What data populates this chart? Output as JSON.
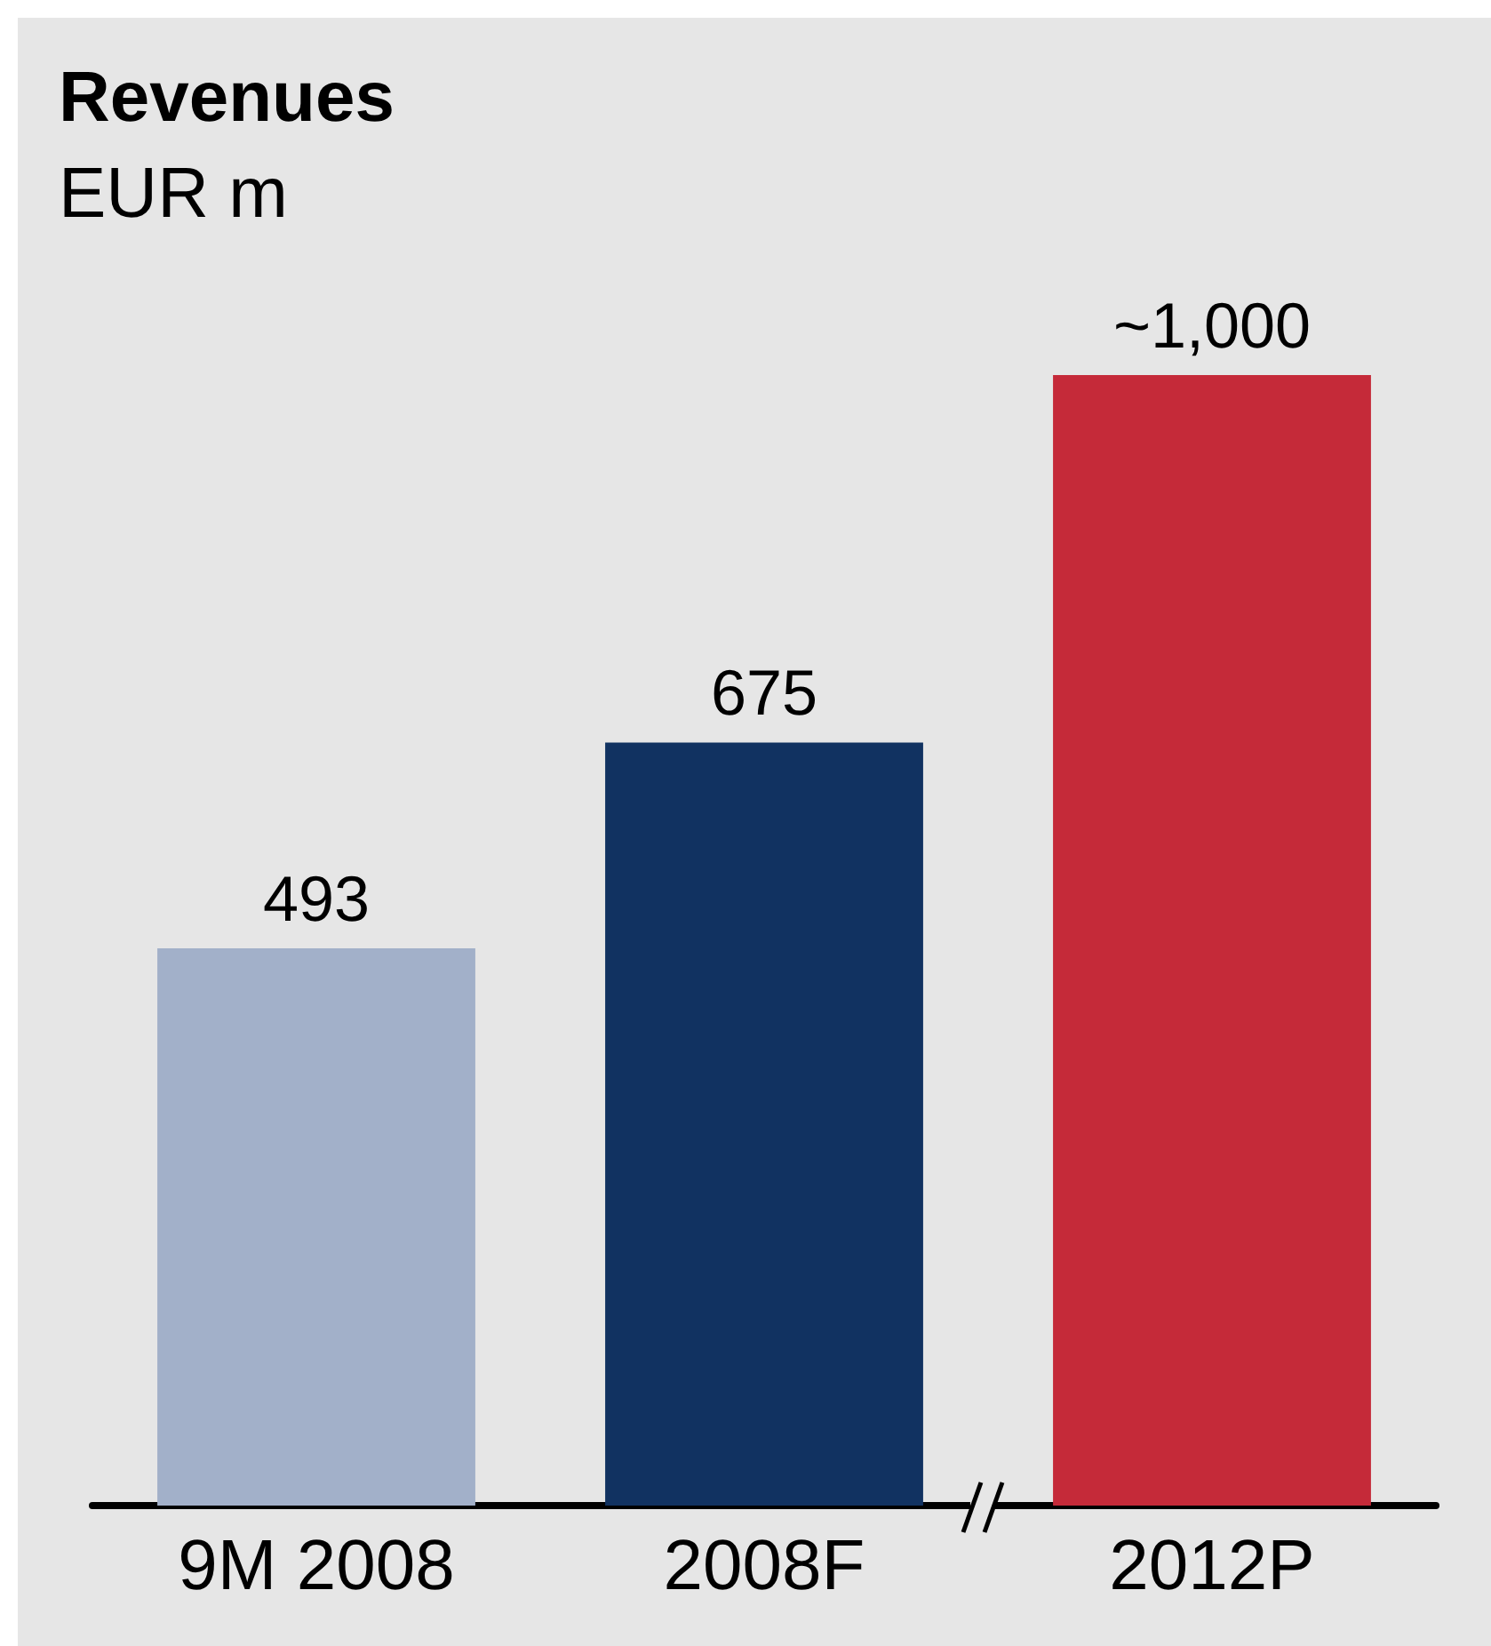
{
  "chart_data": {
    "type": "bar",
    "title": "Revenues",
    "subtitle": "EUR m",
    "categories": [
      "9M 2008",
      "2008F",
      "2012P"
    ],
    "values": [
      493,
      675,
      1000
    ],
    "colors": [
      "#a2b0c9",
      "#113261",
      "#c52a39"
    ],
    "value_labels": [
      "493",
      "675",
      "~1,000"
    ]
  }
}
